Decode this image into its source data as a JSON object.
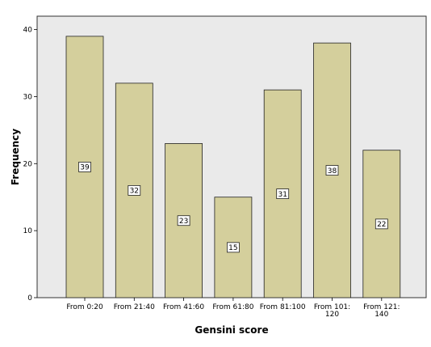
{
  "chart_data": {
    "type": "bar",
    "title": "",
    "xlabel": "Gensini score",
    "ylabel": "Frequency",
    "categories": [
      [
        "From 0:20"
      ],
      [
        "From 21:40"
      ],
      [
        "From 41:60"
      ],
      [
        "From 61:80"
      ],
      [
        "From 81:100"
      ],
      [
        "From 101:",
        "120"
      ],
      [
        "From 121:",
        "140"
      ]
    ],
    "values": [
      39,
      32,
      23,
      15,
      31,
      38,
      22
    ],
    "ylim": [
      0,
      42
    ],
    "yticks": [
      0,
      10,
      20,
      30,
      40
    ],
    "grid": false,
    "bar_color": "#d4cf9c",
    "plot_background": "#eaeaea"
  }
}
